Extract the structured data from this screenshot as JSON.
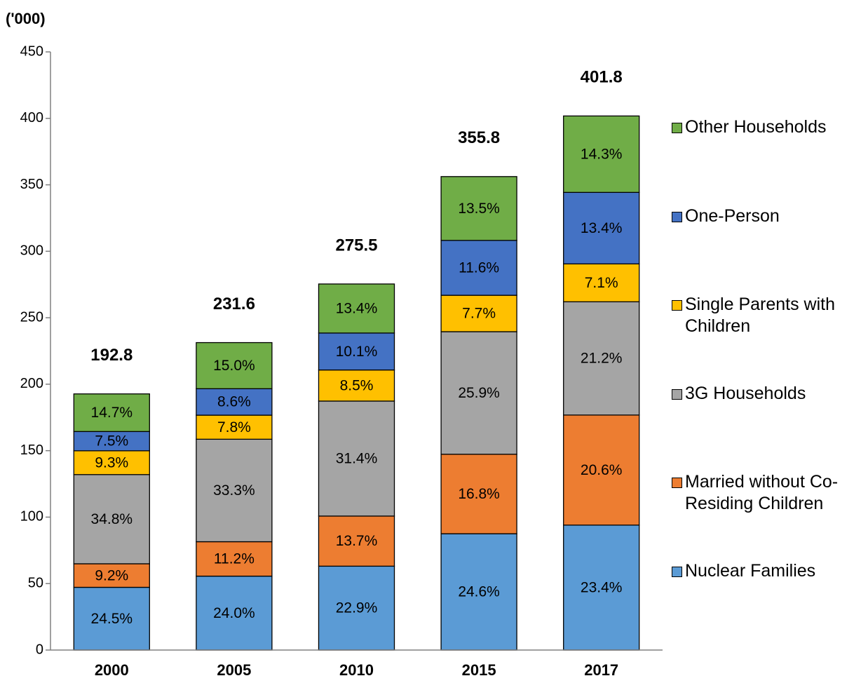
{
  "chart_data": {
    "type": "stacked_bar",
    "y_axis_label": "('000)",
    "categories": [
      "2000",
      "2005",
      "2010",
      "2015",
      "2017"
    ],
    "ylim": [
      0,
      450
    ],
    "yticks": [
      0,
      50,
      100,
      150,
      200,
      250,
      300,
      350,
      400,
      450
    ],
    "totals": [
      192.8,
      231.6,
      275.5,
      355.8,
      401.8
    ],
    "series": [
      {
        "name": "Nuclear Families",
        "color": "#5b9bd5",
        "values": [
          47.2,
          55.6,
          63.1,
          87.5,
          94.0
        ],
        "share_labels": [
          "24.5%",
          "24.0%",
          "22.9%",
          "24.6%",
          "23.4%"
        ]
      },
      {
        "name": "Married without Co-Residing Children",
        "color": "#ed7d31",
        "values": [
          17.7,
          25.9,
          37.7,
          59.8,
          82.8
        ],
        "share_labels": [
          "9.2%",
          "11.2%",
          "13.7%",
          "16.8%",
          "20.6%"
        ]
      },
      {
        "name": "3G Households",
        "color": "#a5a5a5",
        "values": [
          67.1,
          77.1,
          86.5,
          92.2,
          85.2
        ],
        "share_labels": [
          "34.8%",
          "33.3%",
          "31.4%",
          "25.9%",
          "21.2%"
        ]
      },
      {
        "name": "Single Parents with Children",
        "color": "#ffc000",
        "values": [
          17.9,
          18.1,
          23.4,
          27.4,
          28.5
        ],
        "share_labels": [
          "9.3%",
          "7.8%",
          "8.5%",
          "7.7%",
          "7.1%"
        ]
      },
      {
        "name": "One-Person",
        "color": "#4472c4",
        "values": [
          14.5,
          19.9,
          27.8,
          41.3,
          53.8
        ],
        "share_labels": [
          "7.5%",
          "8.6%",
          "10.1%",
          "11.6%",
          "13.4%"
        ]
      },
      {
        "name": "Other Households",
        "color": "#70ad47",
        "values": [
          28.3,
          34.7,
          36.9,
          48.0,
          57.5
        ],
        "share_labels": [
          "14.7%",
          "15.0%",
          "13.4%",
          "13.5%",
          "14.3%"
        ]
      }
    ]
  }
}
